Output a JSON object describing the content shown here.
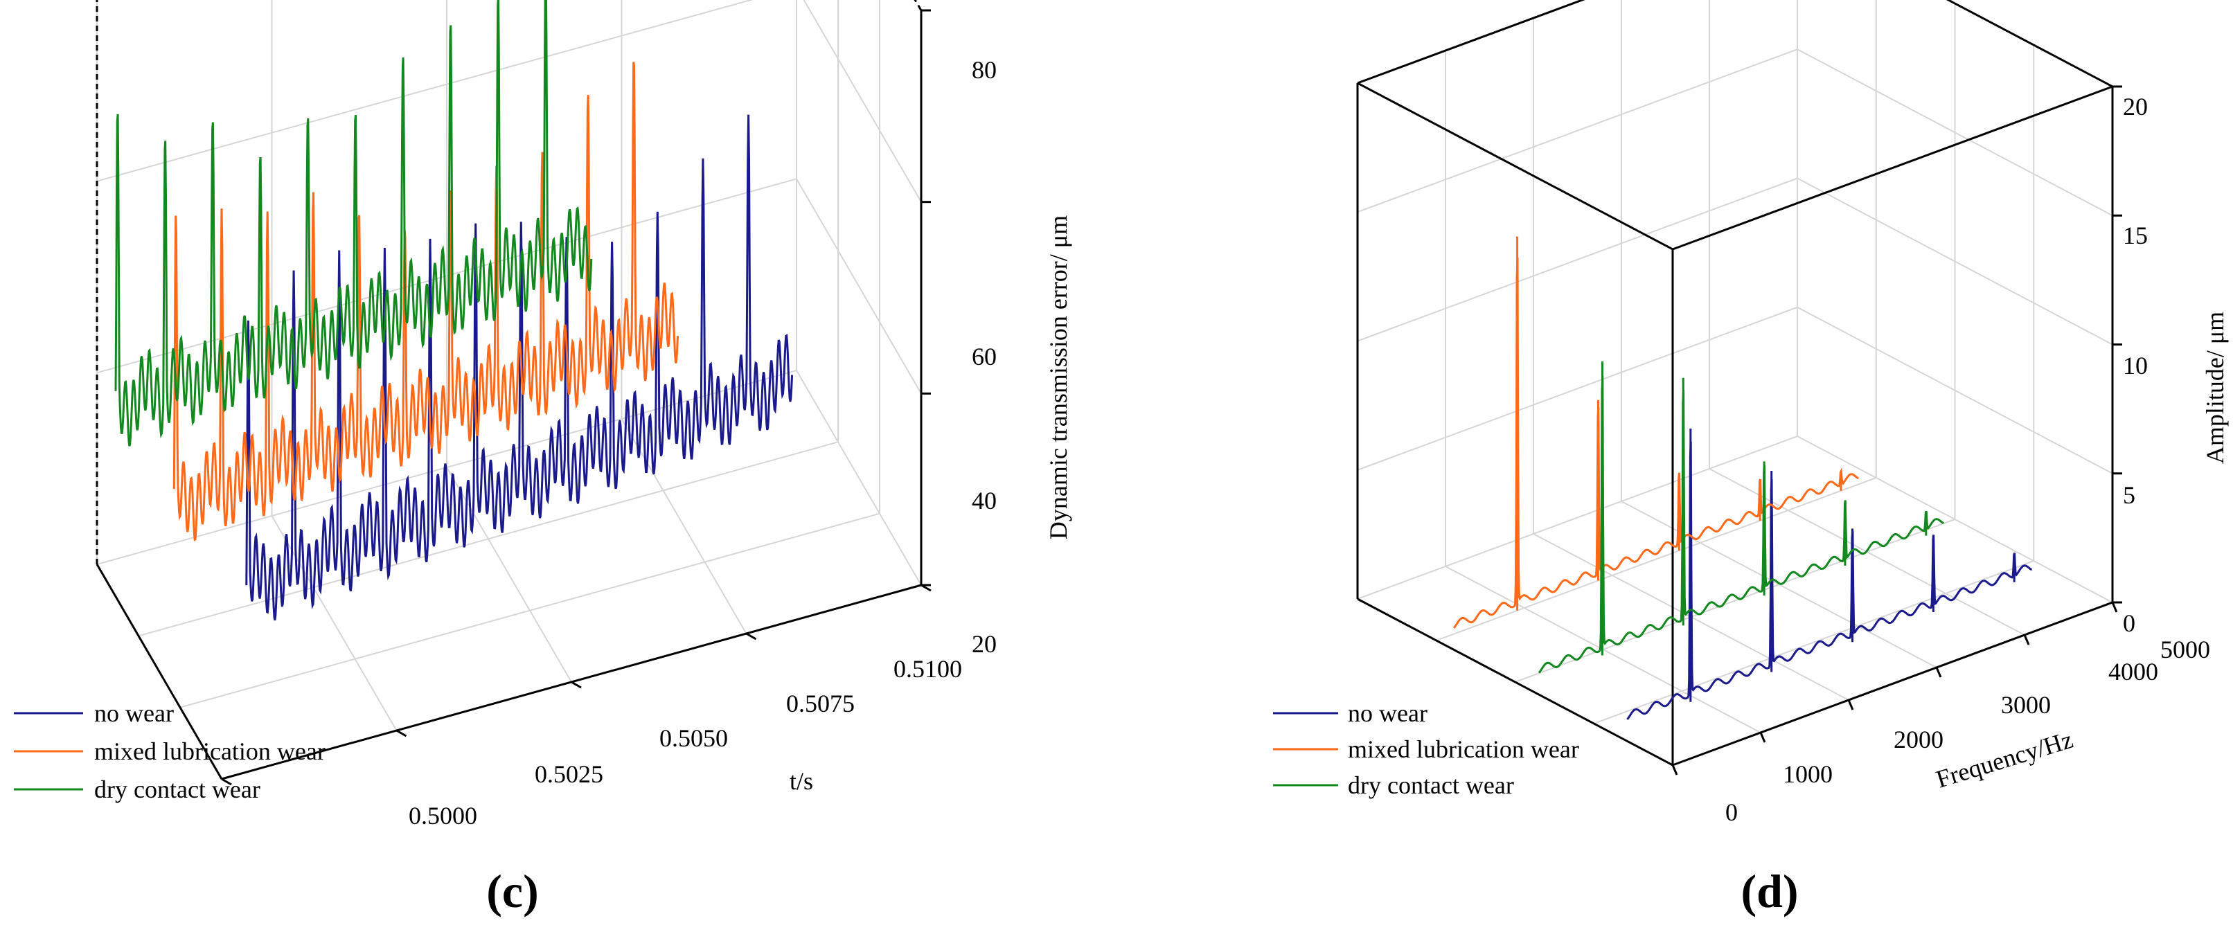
{
  "colors": {
    "no_wear": "#1a1a8c",
    "mixed": "#ff6a1a",
    "dry": "#12881e",
    "grid": "#d6d6d6",
    "axis": "#000000"
  },
  "chart_data": [
    {
      "panel": "(c)",
      "type": "line",
      "subtype": "3d-waterfall",
      "title": "",
      "xlabel": "t/s",
      "ylabel": "Dynamic transmission error/ μm",
      "x_ticks": [
        "0.5000",
        "0.5025",
        "0.5050",
        "0.5075",
        "0.5100"
      ],
      "z_ticks": [
        "20",
        "40",
        "60",
        "80"
      ],
      "xlim": [
        0.5,
        0.51
      ],
      "zlim": [
        20,
        80
      ],
      "series": [
        {
          "name": "no wear",
          "key": "no_wear",
          "baseline": 33,
          "amplitude": 28,
          "trend": 6,
          "teeth": 12,
          "x_start": 0.5
        },
        {
          "name": "mixed lubrication wear",
          "key": "mixed",
          "baseline": 36,
          "amplitude": 26,
          "trend": 4,
          "teeth": 11,
          "x_start": 0.5
        },
        {
          "name": "dry contact wear",
          "key": "dry",
          "baseline": 40,
          "amplitude": 27,
          "trend": 3,
          "teeth": 10,
          "x_start": 0.5
        }
      ],
      "legend": [
        "no wear",
        "mixed lubrication wear",
        "dry contact wear"
      ]
    },
    {
      "panel": "(d)",
      "type": "line",
      "subtype": "3d-spectrum",
      "title": "",
      "xlabel": "Frequency/Hz",
      "ylabel": "Amplitude/ μm",
      "x_ticks": [
        "0",
        "1000",
        "2000",
        "3000",
        "4000",
        "5000"
      ],
      "z_ticks": [
        "0",
        "5",
        "10",
        "15",
        "20"
      ],
      "xlim": [
        0,
        5000
      ],
      "zlim": [
        0,
        20
      ],
      "series": [
        {
          "name": "no wear",
          "key": "no_wear",
          "peaks": [
            [
              1000,
              10.6
            ],
            [
              2000,
              7.8
            ],
            [
              3000,
              4.4
            ],
            [
              4000,
              3.0
            ],
            [
              5000,
              1.0
            ]
          ]
        },
        {
          "name": "mixed lubrication wear",
          "key": "mixed",
          "peaks": [
            [
              1000,
              14.5
            ],
            [
              2000,
              7.0
            ],
            [
              3000,
              3.0
            ],
            [
              4000,
              1.5
            ],
            [
              5000,
              0.6
            ]
          ]
        },
        {
          "name": "dry contact wear",
          "key": "dry",
          "peaks": [
            [
              1000,
              11.4
            ],
            [
              2000,
              9.6
            ],
            [
              3000,
              5.2
            ],
            [
              4000,
              2.5
            ],
            [
              5000,
              0.8
            ]
          ]
        }
      ],
      "legend": [
        "no wear",
        "mixed lubrication wear",
        "dry contact wear"
      ]
    }
  ]
}
